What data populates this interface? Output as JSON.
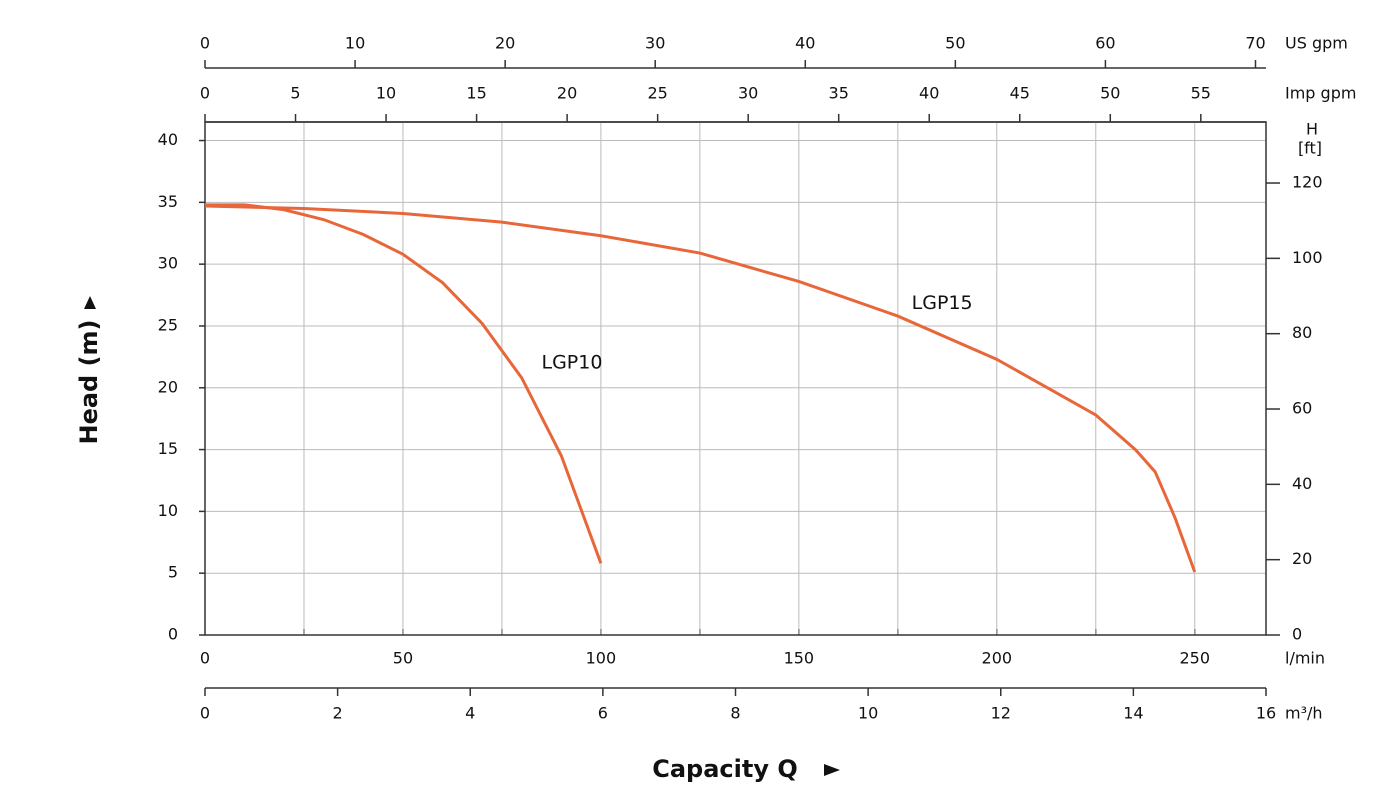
{
  "chart_data": {
    "type": "line",
    "x_label": "Capacity Q",
    "y_label": "Head (m)",
    "y2_label": "H",
    "y2_unit": "[ft]",
    "x_unit": "l/min",
    "xlim": [
      0,
      268
    ],
    "xticks": [
      0,
      50,
      100,
      150,
      200,
      250
    ],
    "xgrid": [
      25,
      50,
      75,
      100,
      125,
      150,
      175,
      200,
      225,
      250
    ],
    "ylim": [
      0,
      41.5
    ],
    "yticks": [
      0,
      5,
      10,
      15,
      20,
      25,
      30,
      35,
      40
    ],
    "y2lim": [
      0,
      136.2
    ],
    "y2ticks": [
      0,
      20,
      40,
      60,
      80,
      100,
      120
    ],
    "grid": true,
    "extra_x_axes": [
      {
        "unit": "US gpm",
        "position": "top",
        "lim": [
          0,
          70.7
        ],
        "ticks": [
          0,
          10,
          20,
          30,
          40,
          50,
          60,
          70
        ]
      },
      {
        "unit": "Imp gpm",
        "position": "top",
        "lim": [
          0,
          58.6
        ],
        "ticks": [
          0,
          5,
          10,
          15,
          20,
          25,
          30,
          35,
          40,
          45,
          50,
          55
        ]
      },
      {
        "unit": "m³/h",
        "position": "bottom",
        "lim": [
          0,
          16
        ],
        "ticks": [
          0,
          2,
          4,
          6,
          8,
          10,
          12,
          14,
          16
        ]
      }
    ],
    "series": [
      {
        "name": "LGP10",
        "color": "#e8673a",
        "x": [
          0,
          10,
          20,
          30,
          40,
          50,
          60,
          70,
          80,
          90,
          100
        ],
        "values": [
          34.8,
          34.8,
          34.4,
          33.6,
          32.4,
          30.8,
          28.5,
          25.2,
          20.8,
          14.5,
          5.8
        ]
      },
      {
        "name": "LGP15",
        "color": "#e8673a",
        "x": [
          0,
          25,
          50,
          75,
          100,
          125,
          150,
          175,
          200,
          225,
          235,
          240,
          245,
          250
        ],
        "values": [
          34.7,
          34.5,
          34.1,
          33.4,
          32.3,
          30.9,
          28.6,
          25.8,
          22.3,
          17.8,
          15.0,
          13.2,
          9.5,
          5.1
        ]
      }
    ]
  }
}
